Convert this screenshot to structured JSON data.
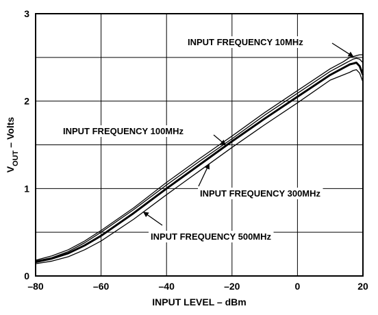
{
  "chart_data": {
    "type": "line",
    "title": "",
    "xlabel": "INPUT LEVEL – dBm",
    "ylabel_main": "V",
    "ylabel_sub": "OUT",
    "ylabel_rest": " – Volts",
    "xlim": [
      -80,
      20
    ],
    "ylim": [
      0,
      3
    ],
    "xticks": [
      -80,
      -60,
      -40,
      -20,
      0,
      20
    ],
    "yticks": [
      0,
      1,
      2,
      3
    ],
    "xtick_labels": [
      "–80",
      "–60",
      "–40",
      "–20",
      "0",
      "20"
    ],
    "ytick_labels": [
      "0",
      "1",
      "2",
      "3"
    ],
    "x_grid_step": 20,
    "y_grid_step": 0.5,
    "grid": true,
    "legend": "none",
    "series": [
      {
        "name": "INPUT FREQUENCY 10MHz",
        "stroke": "thin",
        "x": [
          -80,
          -75,
          -70,
          -65,
          -60,
          -50,
          -40,
          -30,
          -20,
          -10,
          0,
          10,
          14,
          16,
          17,
          18,
          19,
          20
        ],
        "y": [
          0.18,
          0.23,
          0.3,
          0.4,
          0.52,
          0.78,
          1.07,
          1.34,
          1.6,
          1.87,
          2.12,
          2.37,
          2.45,
          2.5,
          2.51,
          2.52,
          2.53,
          2.53
        ]
      },
      {
        "name": "INPUT FREQUENCY 100MHz",
        "stroke": "thin",
        "x": [
          -80,
          -75,
          -70,
          -65,
          -60,
          -50,
          -40,
          -30,
          -20,
          -10,
          0,
          10,
          14,
          16,
          17,
          18,
          19,
          20
        ],
        "y": [
          0.17,
          0.21,
          0.28,
          0.38,
          0.5,
          0.76,
          1.04,
          1.31,
          1.57,
          1.84,
          2.09,
          2.34,
          2.42,
          2.46,
          2.48,
          2.49,
          2.48,
          2.44
        ]
      },
      {
        "name": "INPUT FREQUENCY 300MHz",
        "stroke": "thick",
        "x": [
          -80,
          -75,
          -70,
          -65,
          -60,
          -50,
          -40,
          -30,
          -20,
          -10,
          0,
          10,
          14,
          16,
          17,
          18,
          19,
          20
        ],
        "y": [
          0.16,
          0.2,
          0.26,
          0.35,
          0.46,
          0.72,
          1.0,
          1.27,
          1.54,
          1.8,
          2.05,
          2.3,
          2.38,
          2.42,
          2.43,
          2.44,
          2.4,
          2.3
        ]
      },
      {
        "name": "INPUT FREQUENCY 500MHz",
        "stroke": "thin",
        "x": [
          -80,
          -75,
          -70,
          -65,
          -60,
          -50,
          -40,
          -30,
          -20,
          -10,
          0,
          10,
          14,
          16,
          17,
          18,
          19,
          20
        ],
        "y": [
          0.14,
          0.17,
          0.22,
          0.3,
          0.4,
          0.65,
          0.93,
          1.2,
          1.47,
          1.73,
          1.98,
          2.24,
          2.3,
          2.33,
          2.35,
          2.36,
          2.32,
          2.22
        ]
      }
    ],
    "annotations": [
      {
        "text": "INPUT FREQUENCY 10MHz",
        "arrow_to": [
          17,
          2.51
        ]
      },
      {
        "text": "INPUT FREQUENCY 100MHz",
        "arrow_to": [
          -22,
          1.5
        ]
      },
      {
        "text": "INPUT FREQUENCY 300MHz",
        "arrow_to": [
          -27,
          1.28
        ]
      },
      {
        "text": "INPUT FREQUENCY 500MHz",
        "arrow_to": [
          -47,
          0.73
        ]
      }
    ]
  }
}
